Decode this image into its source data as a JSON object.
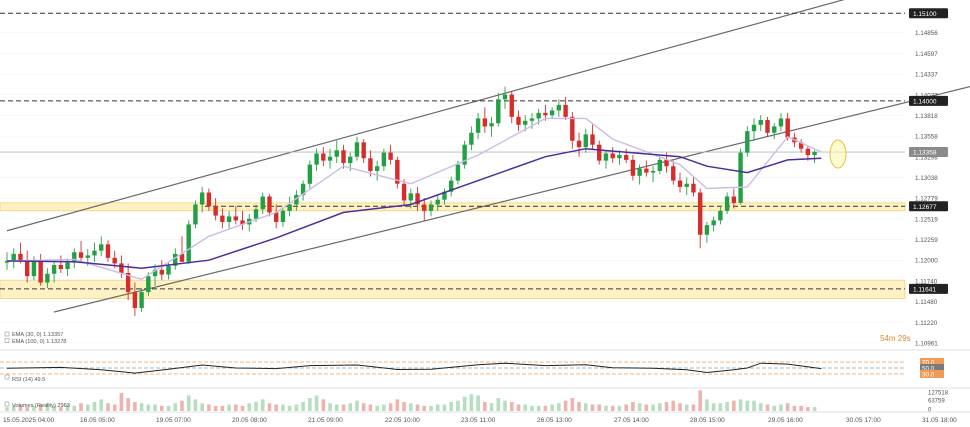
{
  "chart_data": {
    "type": "candlestick",
    "symbol": "EURUSD",
    "timeframe": "H1",
    "price_axis": {
      "ylim": [
        1.10961,
        1.15116
      ],
      "ticks": [
        "1.15116",
        "1.14856",
        "1.14597",
        "1.14337",
        "1.14077",
        "1.13818",
        "1.13558",
        "1.13298",
        "1.13038",
        "1.12779",
        "1.12519",
        "1.12259",
        "1.12000",
        "1.11740",
        "1.11480",
        "1.11220",
        "1.10961"
      ]
    },
    "time_axis": {
      "labels": [
        "15.05.2025 04:00",
        "16.05 05:00",
        "19.05 07:00",
        "20.05 08:00",
        "21.05 09:00",
        "22.05 10:00",
        "23.05 11:00",
        "26.05 13:00",
        "27.05 14:00",
        "28.05 15:00",
        "29.05 16:00",
        "30.05 17:00",
        "31.05 18:00"
      ]
    },
    "levels": [
      {
        "label": "1.15100",
        "value": 1.151,
        "style": "dashed"
      },
      {
        "label": "1.14000",
        "value": 1.14,
        "style": "dashed"
      },
      {
        "label": "1.12677",
        "value": 1.12677,
        "style": "dashed",
        "zone": [
          1.1262,
          1.1272
        ]
      },
      {
        "label": "1.11641",
        "value": 1.11641,
        "style": "dashed",
        "zone": [
          1.1152,
          1.1175
        ]
      }
    ],
    "current_price": {
      "label": "1.13358",
      "value": 1.13358
    },
    "countdown": "54m 29s",
    "channel": {
      "upper": [
        [
          0,
          1.1237
        ],
        [
          60,
          1.1399
        ],
        [
          135,
          1.1552
        ]
      ],
      "lower": [
        [
          7,
          1.1135
        ],
        [
          75,
          1.128
        ],
        [
          185,
          1.1505
        ]
      ]
    },
    "candles": [
      [
        1.1197,
        1.121,
        1.1188,
        1.1199
      ],
      [
        1.1199,
        1.1215,
        1.119,
        1.1208
      ],
      [
        1.1208,
        1.1222,
        1.1196,
        1.12
      ],
      [
        1.12,
        1.1212,
        1.1172,
        1.118
      ],
      [
        1.118,
        1.1205,
        1.1175,
        1.1198
      ],
      [
        1.1198,
        1.1208,
        1.1168,
        1.1172
      ],
      [
        1.1172,
        1.119,
        1.1165,
        1.1183
      ],
      [
        1.1183,
        1.1199,
        1.1172,
        1.1194
      ],
      [
        1.1194,
        1.1206,
        1.1184,
        1.1189
      ],
      [
        1.1189,
        1.1202,
        1.118,
        1.1197
      ],
      [
        1.1197,
        1.1215,
        1.119,
        1.121
      ],
      [
        1.121,
        1.1224,
        1.1199,
        1.1203
      ],
      [
        1.1203,
        1.1214,
        1.1193,
        1.1206
      ],
      [
        1.1206,
        1.1222,
        1.1198,
        1.1212
      ],
      [
        1.1212,
        1.123,
        1.1205,
        1.122
      ],
      [
        1.122,
        1.1225,
        1.1198,
        1.1203
      ],
      [
        1.1203,
        1.1212,
        1.119,
        1.1196
      ],
      [
        1.1196,
        1.1206,
        1.1178,
        1.1184
      ],
      [
        1.1184,
        1.1196,
        1.115,
        1.116
      ],
      [
        1.116,
        1.1172,
        1.113,
        1.114
      ],
      [
        1.114,
        1.1165,
        1.1135,
        1.116
      ],
      [
        1.116,
        1.1185,
        1.1155,
        1.118
      ],
      [
        1.118,
        1.1195,
        1.1168,
        1.1188
      ],
      [
        1.1188,
        1.12,
        1.1175,
        1.1182
      ],
      [
        1.1182,
        1.1198,
        1.1176,
        1.1193
      ],
      [
        1.1193,
        1.1215,
        1.1188,
        1.1208
      ],
      [
        1.1208,
        1.123,
        1.12,
        1.1198
      ],
      [
        1.1198,
        1.125,
        1.1195,
        1.1245
      ],
      [
        1.1245,
        1.1275,
        1.124,
        1.127
      ],
      [
        1.127,
        1.1292,
        1.126,
        1.1285
      ],
      [
        1.1285,
        1.129,
        1.1262,
        1.1268
      ],
      [
        1.1268,
        1.1278,
        1.125,
        1.1256
      ],
      [
        1.1256,
        1.1265,
        1.124,
        1.1248
      ],
      [
        1.1248,
        1.1262,
        1.124,
        1.1255
      ],
      [
        1.1255,
        1.1268,
        1.1245,
        1.125
      ],
      [
        1.125,
        1.1262,
        1.1238,
        1.1245
      ],
      [
        1.1245,
        1.1258,
        1.1236,
        1.1252
      ],
      [
        1.1252,
        1.127,
        1.1248,
        1.1264
      ],
      [
        1.1264,
        1.1285,
        1.1258,
        1.128
      ],
      [
        1.128,
        1.1283,
        1.1255,
        1.126
      ],
      [
        1.126,
        1.127,
        1.124,
        1.1248
      ],
      [
        1.1248,
        1.1266,
        1.1242,
        1.1262
      ],
      [
        1.1262,
        1.128,
        1.1255,
        1.127
      ],
      [
        1.127,
        1.1288,
        1.1262,
        1.1282
      ],
      [
        1.1282,
        1.13,
        1.1275,
        1.1296
      ],
      [
        1.1296,
        1.1325,
        1.129,
        1.132
      ],
      [
        1.132,
        1.134,
        1.1312,
        1.1334
      ],
      [
        1.1334,
        1.1342,
        1.1318,
        1.1325
      ],
      [
        1.1325,
        1.134,
        1.1315,
        1.133
      ],
      [
        1.133,
        1.135,
        1.1322,
        1.1338
      ],
      [
        1.1338,
        1.1345,
        1.1315,
        1.1322
      ],
      [
        1.1322,
        1.1335,
        1.1312,
        1.133
      ],
      [
        1.133,
        1.1355,
        1.1325,
        1.1348
      ],
      [
        1.1348,
        1.1352,
        1.1322,
        1.1328
      ],
      [
        1.1328,
        1.1338,
        1.1305,
        1.1312
      ],
      [
        1.1312,
        1.1325,
        1.13,
        1.1318
      ],
      [
        1.1318,
        1.134,
        1.1312,
        1.1335
      ],
      [
        1.1335,
        1.1345,
        1.132,
        1.1326
      ],
      [
        1.1326,
        1.133,
        1.129,
        1.1296
      ],
      [
        1.1296,
        1.1302,
        1.1268,
        1.1275
      ],
      [
        1.1275,
        1.129,
        1.1265,
        1.1284
      ],
      [
        1.1284,
        1.1292,
        1.1262,
        1.127
      ],
      [
        1.127,
        1.1278,
        1.125,
        1.1262
      ],
      [
        1.1262,
        1.1275,
        1.1255,
        1.127
      ],
      [
        1.127,
        1.1282,
        1.1262,
        1.1276
      ],
      [
        1.1276,
        1.129,
        1.127,
        1.1286
      ],
      [
        1.1286,
        1.1305,
        1.128,
        1.13
      ],
      [
        1.13,
        1.1325,
        1.1295,
        1.132
      ],
      [
        1.132,
        1.135,
        1.1315,
        1.1345
      ],
      [
        1.1345,
        1.1368,
        1.1338,
        1.136
      ],
      [
        1.136,
        1.1385,
        1.1352,
        1.1378
      ],
      [
        1.1378,
        1.1392,
        1.136,
        1.1368
      ],
      [
        1.1368,
        1.138,
        1.1355,
        1.1372
      ],
      [
        1.1372,
        1.141,
        1.1368,
        1.1402
      ],
      [
        1.1402,
        1.1418,
        1.139,
        1.1408
      ],
      [
        1.1408,
        1.1412,
        1.1372,
        1.138
      ],
      [
        1.138,
        1.1388,
        1.1362,
        1.137
      ],
      [
        1.137,
        1.1382,
        1.1362,
        1.1375
      ],
      [
        1.1375,
        1.1385,
        1.1365,
        1.1378
      ],
      [
        1.1378,
        1.139,
        1.137,
        1.1385
      ],
      [
        1.1385,
        1.1395,
        1.1375,
        1.1382
      ],
      [
        1.1382,
        1.1392,
        1.1378,
        1.1388
      ],
      [
        1.1388,
        1.1402,
        1.138,
        1.1395
      ],
      [
        1.1395,
        1.1405,
        1.1376,
        1.138
      ],
      [
        1.138,
        1.1386,
        1.134,
        1.135
      ],
      [
        1.135,
        1.136,
        1.133,
        1.1342
      ],
      [
        1.1342,
        1.1365,
        1.1335,
        1.1358
      ],
      [
        1.1358,
        1.137,
        1.134,
        1.1345
      ],
      [
        1.1345,
        1.135,
        1.132,
        1.1325
      ],
      [
        1.1325,
        1.1338,
        1.1315,
        1.1334
      ],
      [
        1.1334,
        1.1342,
        1.1322,
        1.1328
      ],
      [
        1.1328,
        1.1338,
        1.132,
        1.1332
      ],
      [
        1.1332,
        1.134,
        1.1322,
        1.1326
      ],
      [
        1.1326,
        1.1332,
        1.13,
        1.1306
      ],
      [
        1.1306,
        1.132,
        1.1295,
        1.1315
      ],
      [
        1.1315,
        1.1325,
        1.1305,
        1.131
      ],
      [
        1.131,
        1.1318,
        1.1298,
        1.1312
      ],
      [
        1.1312,
        1.133,
        1.1308,
        1.1326
      ],
      [
        1.1326,
        1.1335,
        1.131,
        1.1318
      ],
      [
        1.1318,
        1.1325,
        1.1295,
        1.13
      ],
      [
        1.13,
        1.131,
        1.1285,
        1.1292
      ],
      [
        1.1292,
        1.1304,
        1.1282,
        1.1296
      ],
      [
        1.1296,
        1.1305,
        1.128,
        1.1285
      ],
      [
        1.1285,
        1.129,
        1.1215,
        1.1232
      ],
      [
        1.1232,
        1.1248,
        1.1222,
        1.1244
      ],
      [
        1.1244,
        1.1255,
        1.1236,
        1.125
      ],
      [
        1.125,
        1.1268,
        1.1245,
        1.1262
      ],
      [
        1.1262,
        1.1285,
        1.1258,
        1.128
      ],
      [
        1.128,
        1.129,
        1.1265,
        1.1272
      ],
      [
        1.1272,
        1.134,
        1.127,
        1.1335
      ],
      [
        1.1335,
        1.1368,
        1.133,
        1.1362
      ],
      [
        1.1362,
        1.1378,
        1.135,
        1.137
      ],
      [
        1.137,
        1.1382,
        1.1362,
        1.1376
      ],
      [
        1.1376,
        1.138,
        1.1355,
        1.136
      ],
      [
        1.136,
        1.1372,
        1.1352,
        1.1368
      ],
      [
        1.1368,
        1.1385,
        1.1362,
        1.1378
      ],
      [
        1.1378,
        1.1385,
        1.135,
        1.1354
      ],
      [
        1.1354,
        1.136,
        1.1342,
        1.1348
      ],
      [
        1.1348,
        1.1352,
        1.1335,
        1.134
      ],
      [
        1.134,
        1.1344,
        1.1325,
        1.1332
      ],
      [
        1.1332,
        1.1338,
        1.1322,
        1.1336
      ]
    ],
    "ema30": [
      [
        0,
        1.1199
      ],
      [
        10,
        1.1201
      ],
      [
        20,
        1.1176
      ],
      [
        30,
        1.123
      ],
      [
        40,
        1.126
      ],
      [
        50,
        1.1318
      ],
      [
        60,
        1.1296
      ],
      [
        70,
        1.1332
      ],
      [
        80,
        1.1378
      ],
      [
        86,
        1.1378
      ],
      [
        90,
        1.1352
      ],
      [
        100,
        1.132
      ],
      [
        104,
        1.129
      ],
      [
        110,
        1.1292
      ],
      [
        116,
        1.1355
      ],
      [
        121,
        1.1336
      ]
    ],
    "ema100": [
      [
        0,
        1.1199
      ],
      [
        10,
        1.1198
      ],
      [
        20,
        1.119
      ],
      [
        30,
        1.12
      ],
      [
        40,
        1.1228
      ],
      [
        50,
        1.126
      ],
      [
        60,
        1.127
      ],
      [
        70,
        1.13
      ],
      [
        80,
        1.133
      ],
      [
        86,
        1.134
      ],
      [
        90,
        1.1337
      ],
      [
        100,
        1.133
      ],
      [
        104,
        1.1318
      ],
      [
        110,
        1.131
      ],
      [
        116,
        1.1326
      ],
      [
        121,
        1.1328
      ]
    ],
    "rsi": {
      "levels": [
        {
          "label": "70.0",
          "value": 70
        },
        {
          "label": "50.0",
          "value": 50
        },
        {
          "label": "30.0",
          "value": 30
        }
      ],
      "values": [
        [
          0,
          49
        ],
        [
          8,
          52
        ],
        [
          14,
          44
        ],
        [
          19,
          33
        ],
        [
          24,
          46
        ],
        [
          29,
          60
        ],
        [
          34,
          50
        ],
        [
          40,
          48
        ],
        [
          45,
          58
        ],
        [
          52,
          60
        ],
        [
          58,
          45
        ],
        [
          63,
          46
        ],
        [
          70,
          61
        ],
        [
          74,
          66
        ],
        [
          80,
          58
        ],
        [
          86,
          61
        ],
        [
          90,
          51
        ],
        [
          96,
          49
        ],
        [
          101,
          44
        ],
        [
          104,
          35
        ],
        [
          108,
          44
        ],
        [
          110,
          50
        ],
        [
          112,
          66
        ],
        [
          116,
          63
        ],
        [
          121,
          48
        ]
      ]
    },
    "volume": {
      "values": [
        3,
        4,
        5,
        3,
        4,
        5,
        6,
        4,
        3,
        5,
        4,
        6,
        5,
        7,
        9,
        6,
        5,
        14,
        10,
        7,
        6,
        5,
        5,
        4,
        4,
        6,
        8,
        12,
        9,
        6,
        5,
        4,
        4,
        5,
        5,
        4,
        6,
        7,
        9,
        6,
        5,
        5,
        4,
        5,
        7,
        10,
        12,
        9,
        6,
        5,
        5,
        6,
        8,
        6,
        5,
        4,
        5,
        6,
        9,
        7,
        6,
        5,
        4,
        4,
        5,
        5,
        7,
        8,
        11,
        13,
        12,
        7,
        6,
        10,
        8,
        7,
        5,
        5,
        4,
        4,
        4,
        5,
        6,
        8,
        10,
        7,
        6,
        5,
        5,
        4,
        4,
        4,
        5,
        7,
        6,
        5,
        5,
        6,
        7,
        8,
        6,
        5,
        5,
        16,
        9,
        6,
        6,
        7,
        8,
        9,
        8,
        8,
        6,
        5,
        4,
        5,
        6,
        4,
        4,
        3,
        3,
        3
      ],
      "ticks": [
        "127518",
        "63759",
        "0"
      ]
    }
  },
  "legend": {
    "ema30": "EMA (30, 0) 1.13357",
    "ema100": "EMA (100, 0) 1.13278",
    "rsi": "RSI (14) 49.5",
    "volume": "Volumes (Reality) 2963"
  },
  "colors": {
    "bull": "#22a046",
    "bear": "#d72c2c",
    "ema30": "#c9bde6",
    "ema100": "#4d2d9c",
    "zone": "#fff1c4",
    "zone_border": "#f0c64a",
    "rsi_line": "#222222",
    "rsi_band": "#f19a55",
    "volume_bull": "#b5dfc0",
    "volume_bear": "#efb2ae"
  }
}
